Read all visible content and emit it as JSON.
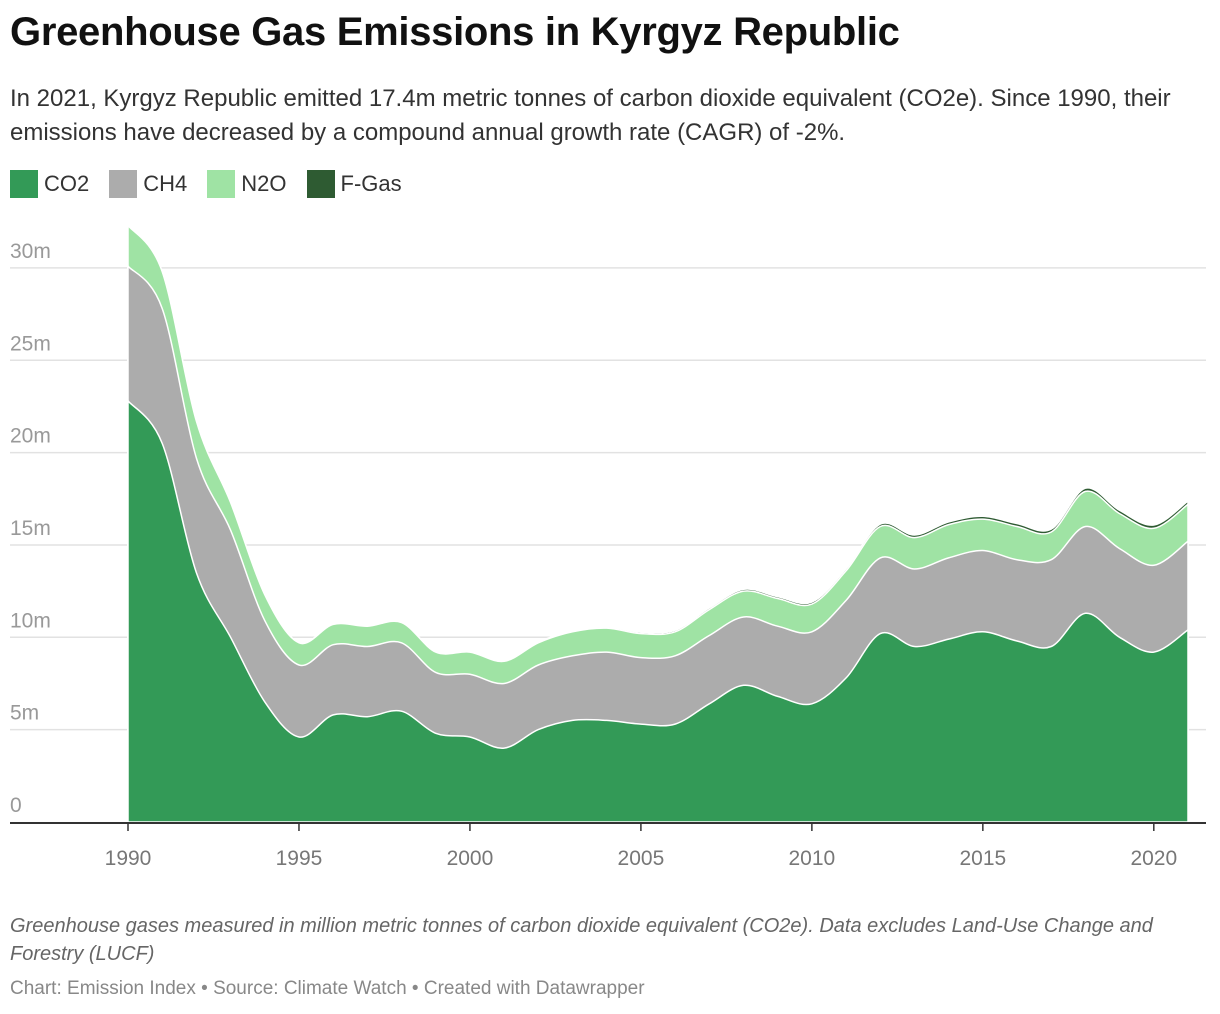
{
  "header": {
    "title": "Greenhouse Gas Emissions in Kyrgyz Republic",
    "subtitle": "In 2021, Kyrgyz Republic emitted 17.4m metric tonnes of carbon dioxide equivalent (CO2e). Since 1990, their emissions have decreased by a compound annual growth rate (CAGR) of -2%."
  },
  "footer": {
    "notes": "Greenhouse gases measured in million metric tonnes of carbon dioxide equivalent (CO2e). Data excludes Land-Use Change and Forestry (LUCF)",
    "source": "Chart: Emission Index • Source: Climate Watch • Created with Datawrapper"
  },
  "chart_data": {
    "type": "area",
    "stacked": true,
    "x": [
      1990,
      1991,
      1992,
      1993,
      1994,
      1995,
      1996,
      1997,
      1998,
      1999,
      2000,
      2001,
      2002,
      2003,
      2004,
      2005,
      2006,
      2007,
      2008,
      2009,
      2010,
      2011,
      2012,
      2013,
      2014,
      2015,
      2016,
      2017,
      2018,
      2019,
      2020,
      2021
    ],
    "series": [
      {
        "name": "CO2",
        "color": "#339a57",
        "values": [
          22.8,
          20.5,
          13.5,
          10.0,
          6.5,
          4.6,
          5.8,
          5.7,
          6.0,
          4.8,
          4.6,
          4.0,
          5.0,
          5.5,
          5.5,
          5.3,
          5.3,
          6.4,
          7.4,
          6.8,
          6.4,
          7.8,
          10.2,
          9.5,
          9.9,
          10.3,
          9.8,
          9.5,
          11.3,
          10.0,
          9.2,
          10.4
        ]
      },
      {
        "name": "CH4",
        "color": "#acacac",
        "values": [
          7.3,
          7.3,
          6.2,
          5.8,
          4.4,
          3.9,
          3.8,
          3.8,
          3.7,
          3.3,
          3.4,
          3.5,
          3.5,
          3.5,
          3.7,
          3.6,
          3.7,
          3.7,
          3.7,
          3.8,
          3.9,
          4.2,
          4.1,
          4.2,
          4.4,
          4.4,
          4.4,
          4.7,
          4.7,
          4.8,
          4.7,
          4.8
        ]
      },
      {
        "name": "N2O",
        "color": "#9fe3a4",
        "values": [
          2.2,
          2.0,
          2.0,
          1.5,
          1.4,
          1.2,
          1.1,
          1.1,
          1.1,
          1.1,
          1.2,
          1.2,
          1.2,
          1.3,
          1.3,
          1.3,
          1.3,
          1.4,
          1.4,
          1.5,
          1.5,
          1.6,
          1.7,
          1.7,
          1.8,
          1.7,
          1.8,
          1.5,
          1.9,
          1.9,
          2.0,
          2.0
        ]
      },
      {
        "name": "F-Gas",
        "color": "#2e5b32",
        "values": [
          0,
          0,
          0,
          0,
          0,
          0,
          0.02,
          0.02,
          0.02,
          0.02,
          0.03,
          0.03,
          0.04,
          0.05,
          0.06,
          0.07,
          0.08,
          0.09,
          0.1,
          0.1,
          0.11,
          0.12,
          0.13,
          0.14,
          0.15,
          0.15,
          0.16,
          0.16,
          0.17,
          0.17,
          0.18,
          0.18
        ]
      }
    ],
    "ylim": [
      0,
      32
    ],
    "y_ticks": [
      0,
      5,
      10,
      15,
      20,
      25,
      30
    ],
    "y_tick_labels": [
      "0",
      "5m",
      "10m",
      "15m",
      "20m",
      "25m",
      "30m"
    ],
    "x_ticks": [
      1990,
      1995,
      2000,
      2005,
      2010,
      2015,
      2020
    ],
    "x_tick_labels": [
      "1990",
      "1995",
      "2000",
      "2005",
      "2010",
      "2015",
      "2020"
    ],
    "grid": true,
    "legend_position": "top-left"
  }
}
